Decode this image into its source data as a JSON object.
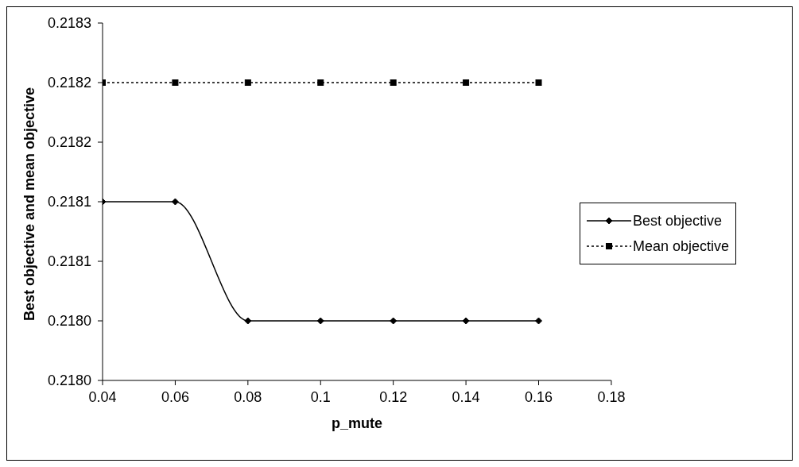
{
  "chart_data": {
    "type": "line",
    "xlabel": "p_mute",
    "ylabel": "Best objective and mean objective",
    "x": [
      0.04,
      0.06,
      0.08,
      0.1,
      0.12,
      0.14,
      0.16
    ],
    "series": [
      {
        "name": "Best objective",
        "color": "#000000",
        "values": [
          0.21815,
          0.21815,
          0.21805,
          0.21805,
          0.21805,
          0.21805,
          0.21805
        ],
        "marker": "diamond",
        "line_style": "solid"
      },
      {
        "name": "Mean objective",
        "color": "#000000",
        "values": [
          0.21825,
          0.21825,
          0.21825,
          0.21825,
          0.21825,
          0.21825,
          0.21825
        ],
        "marker": "square",
        "line_style": "dotted"
      }
    ],
    "xlim": [
      0.04,
      0.18
    ],
    "xticks": [
      0.04,
      0.06,
      0.08,
      0.1,
      0.12,
      0.14,
      0.16,
      0.18
    ],
    "ylim": [
      0.218,
      0.2183
    ],
    "yticks": [
      {
        "value": 0.218,
        "label": "0.2180"
      },
      {
        "value": 0.21805,
        "label": "0.2180"
      },
      {
        "value": 0.2181,
        "label": "0.2181"
      },
      {
        "value": 0.21815,
        "label": "0.2181"
      },
      {
        "value": 0.2182,
        "label": "0.2182"
      },
      {
        "value": 0.21825,
        "label": "0.2182"
      },
      {
        "value": 0.2183,
        "label": "0.2183"
      }
    ],
    "grid": false,
    "legend": "right"
  }
}
